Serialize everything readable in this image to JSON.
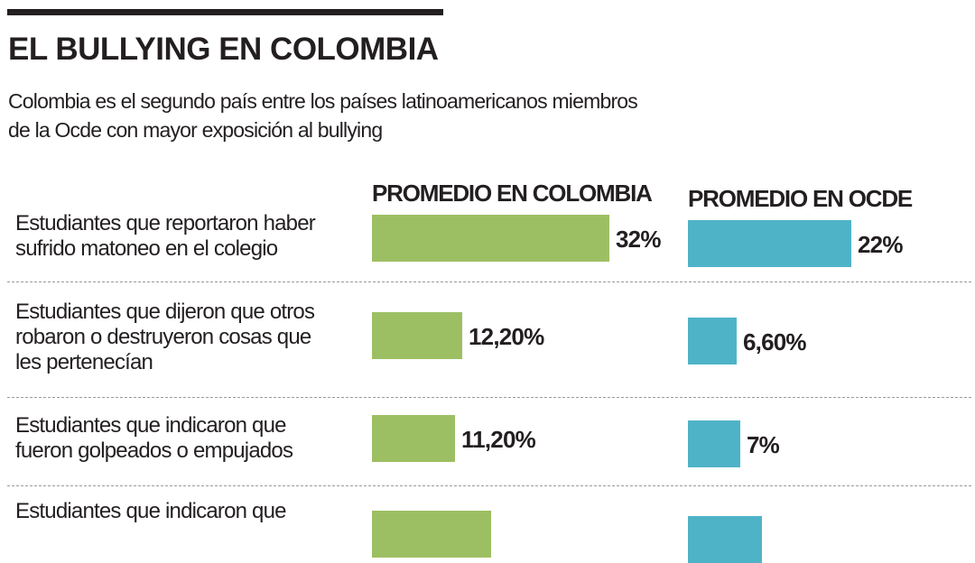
{
  "header": {
    "title": "EL BULLYING EN COLOMBIA",
    "subtitle": "Colombia es el segundo país entre los países latinoamericanos miembros de la Ocde con mayor exposición al bullying"
  },
  "colors": {
    "colombia": "#9dbf63",
    "ocde": "#4fb3c8",
    "text": "#231f20",
    "divider": "#9a9a9a"
  },
  "chart_data": {
    "type": "bar",
    "orientation": "horizontal",
    "categories": [
      "Estudiantes que reportaron haber sufrido matoneo en el colegio",
      "Estudiantes que dijeron que otros robaron o destruyeron cosas que les pertenecían",
      "Estudiantes que indicaron que fueron golpeados o empujados",
      "Estudiantes que indicaron que"
    ],
    "series": [
      {
        "name": "PROMEDIO EN COLOMBIA",
        "values": [
          32,
          12.2,
          11.2,
          16
        ],
        "labels": [
          "32%",
          "12,20%",
          "11,20%",
          ""
        ]
      },
      {
        "name": "PROMEDIO EN OCDE",
        "values": [
          22,
          6.6,
          7,
          10
        ],
        "labels": [
          "22%",
          "6,60%",
          "7%",
          ""
        ]
      }
    ],
    "unit": "%",
    "grid": false,
    "legend": "series names as column headers above the bars"
  }
}
